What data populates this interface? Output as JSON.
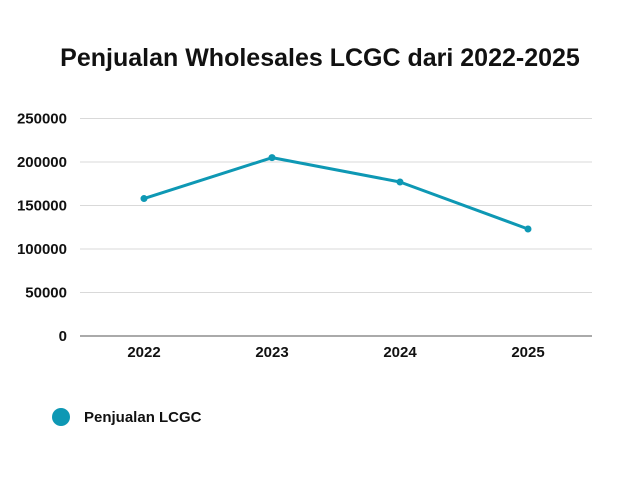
{
  "chart_data": {
    "type": "line",
    "title": "Penjualan Wholesales LCGC dari 2022-2025",
    "categories": [
      "2022",
      "2023",
      "2024",
      "2025"
    ],
    "series": [
      {
        "name": "Penjualan LCGC",
        "values": [
          158000,
          205000,
          177000,
          123000
        ],
        "color": "#0E98B4"
      }
    ],
    "ylim": [
      0,
      250000
    ],
    "yticks": [
      "0",
      "50000",
      "100000",
      "150000",
      "200000",
      "250000"
    ],
    "xlabel": "",
    "ylabel": "",
    "grid": true,
    "legend": "bottom-left"
  }
}
